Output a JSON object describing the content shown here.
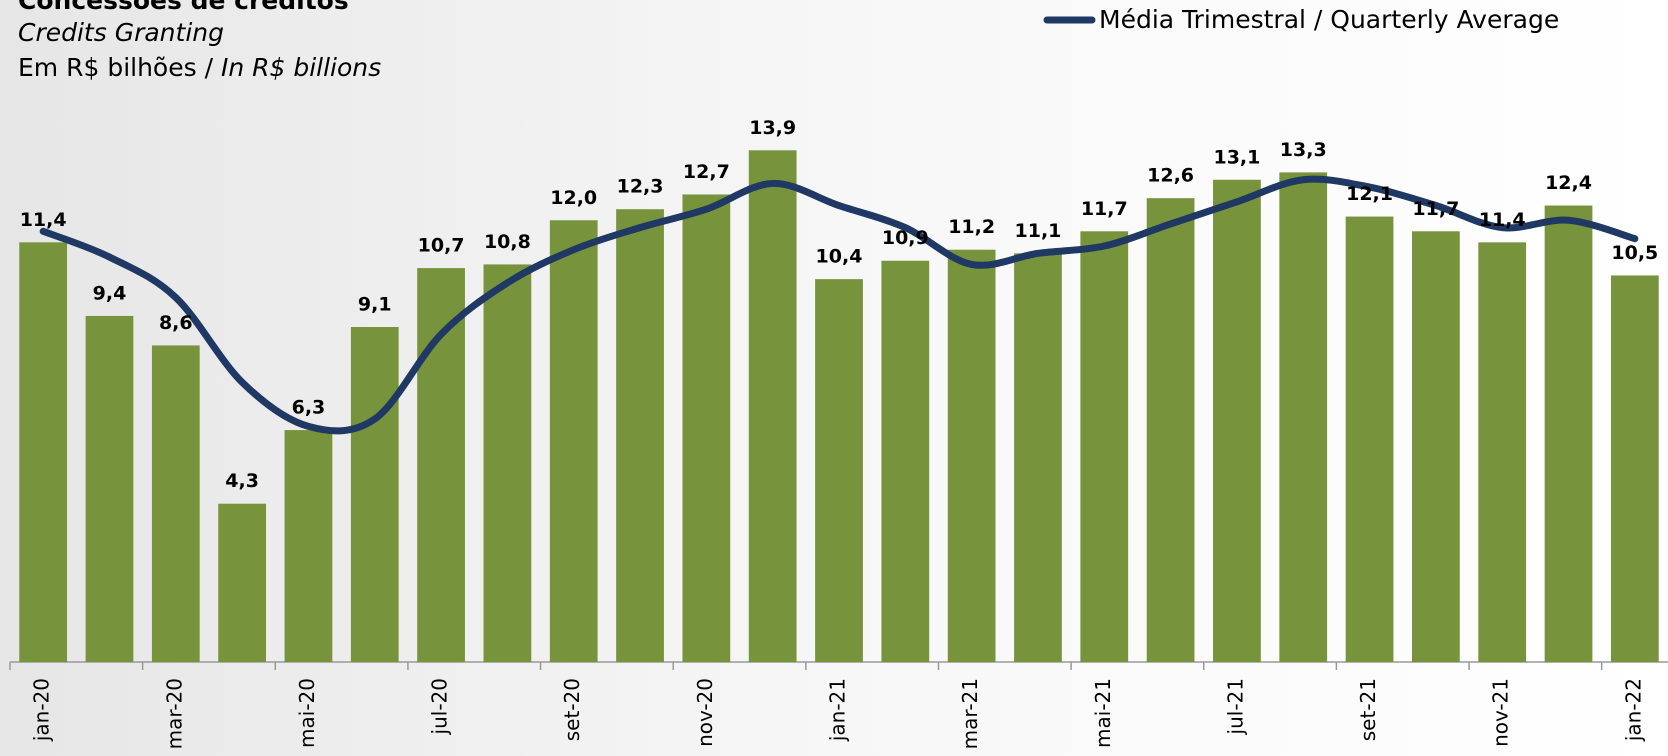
{
  "chart_data": {
    "type": "bar",
    "title": "Concessões de créditos",
    "subtitle": "Credits Granting",
    "unit_label": [
      "Em R$ bilhões / ",
      "In R$ billions"
    ],
    "categories": [
      "jan-20",
      null,
      "mar-20",
      null,
      "mai-20",
      null,
      "jul-20",
      null,
      "set-20",
      null,
      "nov-20",
      null,
      "jan-21",
      null,
      "mar-21",
      null,
      "mai-21",
      null,
      "jul-21",
      null,
      "set-21",
      null,
      "nov-21",
      null,
      "jan-22"
    ],
    "series": [
      {
        "name": "Concessões",
        "type": "bar",
        "color": "#77933c",
        "values": [
          11.4,
          9.4,
          8.6,
          4.3,
          6.3,
          9.1,
          10.7,
          10.8,
          12.0,
          12.3,
          12.7,
          13.9,
          10.4,
          10.9,
          11.2,
          11.1,
          11.7,
          12.6,
          13.1,
          13.3,
          12.1,
          11.7,
          11.4,
          12.4,
          10.5
        ],
        "value_labels": [
          "11,4",
          "9,4",
          "8,6",
          "4,3",
          "6,3",
          "9,1",
          "10,7",
          "10,8",
          "12,0",
          "12,3",
          "12,7",
          "13,9",
          "10,4",
          "10,9",
          "11,2",
          "11,1",
          "11,7",
          "12,6",
          "13,1",
          "13,3",
          "12,1",
          "11,7",
          "11,4",
          "12,4",
          "10,5"
        ]
      },
      {
        "name": "Média Trimestral / Quarterly Average",
        "type": "line",
        "color": "#1f3864",
        "values": [
          11.7,
          11.0,
          9.9,
          7.6,
          6.4,
          6.6,
          8.9,
          10.3,
          11.2,
          11.8,
          12.3,
          13.0,
          12.4,
          11.8,
          10.8,
          11.1,
          11.3,
          11.9,
          12.5,
          13.1,
          12.9,
          12.4,
          11.8,
          12.0,
          11.5
        ]
      }
    ],
    "ylim": [
      0,
      16
    ],
    "legend": "top-right"
  }
}
